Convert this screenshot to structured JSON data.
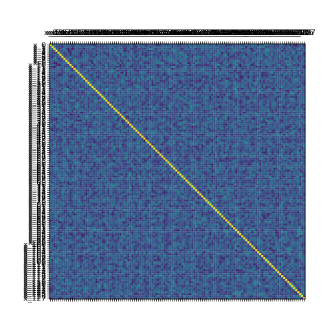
{
  "chart_data": {
    "type": "heatmap",
    "title": "",
    "xlabel": "",
    "ylabel": "",
    "n": 128,
    "x_ticks_position": "top",
    "y_ticks_position": "left",
    "label_prefix": "x_",
    "colormap": "viridis",
    "colormap_stops": [
      "#440154",
      "#3b528b",
      "#21918c",
      "#5ec962",
      "#fde725"
    ],
    "value_range": [
      -0.3,
      1.0
    ],
    "diagonal_value": 1.0,
    "off_diagonal_typical_range": [
      -0.25,
      0.35
    ],
    "grid": false,
    "legend": "none"
  }
}
